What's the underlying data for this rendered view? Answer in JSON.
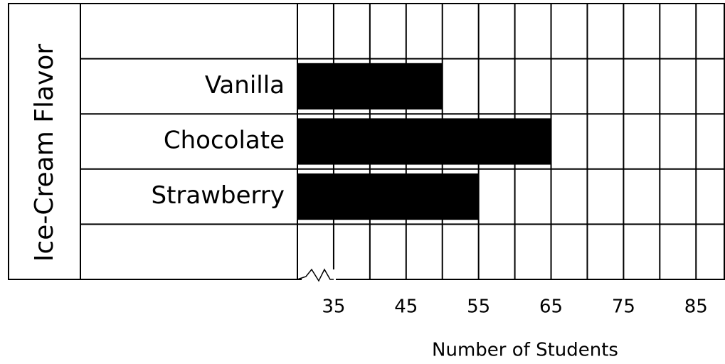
{
  "chart_data": {
    "type": "hbar",
    "xlabel": "Number of Students",
    "ylabel": "Ice-Cream  Flavor",
    "categories": [
      "Vanilla",
      "Chocolate",
      "Strawberry"
    ],
    "values": [
      50,
      65,
      55
    ],
    "color": "#000000",
    "xlim": [
      30,
      89
    ],
    "xticks": [
      35,
      45,
      55,
      65,
      75,
      85
    ],
    "xminorticks": [
      40,
      50,
      60,
      70,
      80
    ],
    "grid": true
  }
}
